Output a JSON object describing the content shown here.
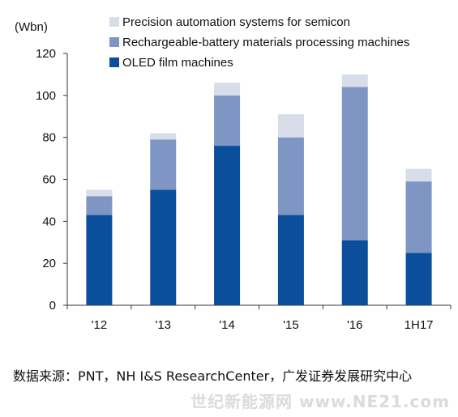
{
  "chart_data": {
    "type": "bar",
    "stacked": true,
    "unit_label": "(Wbn)",
    "categories": [
      "'12",
      "'13",
      "'14",
      "'15",
      "'16",
      "1H17"
    ],
    "ylim": [
      0,
      120
    ],
    "yticks": [
      0,
      20,
      40,
      60,
      80,
      100,
      120
    ],
    "grid": false,
    "legend_position": "top",
    "series": [
      {
        "name": "OLED film machines",
        "color": "#0b4e9b",
        "values": [
          43,
          55,
          76,
          43,
          31,
          25
        ]
      },
      {
        "name": "Rechargeable-battery materials processing machines",
        "color": "#7f95c4",
        "values": [
          9,
          24,
          24,
          37,
          73,
          34
        ]
      },
      {
        "name": "Precision automation systems for semicon",
        "color": "#d7dde9",
        "values": [
          3,
          3,
          6,
          11,
          6,
          6
        ]
      }
    ]
  },
  "source_text": "数据来源：PNT，NH I&S ResearchCenter，广发证券发展研究中心",
  "watermark_text": "世纪新能源网 www.NE21.com"
}
